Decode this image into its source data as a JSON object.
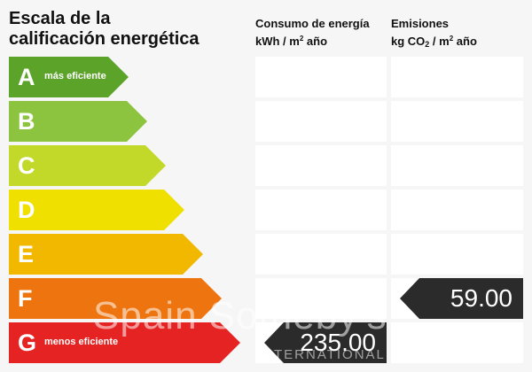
{
  "title": {
    "line1": "Escala de la",
    "line2": "calificación energética"
  },
  "consumo": {
    "line1": "Consumo de energía",
    "line2_pre": "kWh / m",
    "line2_sup": "2",
    "line2_post": " año",
    "value": "235.00",
    "rating": "G"
  },
  "emisiones": {
    "line1": "Emisiones",
    "line2_pre": "kg CO",
    "line2_sub": "2",
    "line2_mid": " / m",
    "line2_sup": "2",
    "line2_post": " año",
    "value": "59.00",
    "rating": "F"
  },
  "scale": [
    {
      "letter": "A",
      "desc": "más eficiente",
      "color": "#5ca32a"
    },
    {
      "letter": "B",
      "desc": "",
      "color": "#8cc43f"
    },
    {
      "letter": "C",
      "desc": "",
      "color": "#c2d92a"
    },
    {
      "letter": "D",
      "desc": "",
      "color": "#f0e000"
    },
    {
      "letter": "E",
      "desc": "",
      "color": "#f2b800"
    },
    {
      "letter": "F",
      "desc": "",
      "color": "#ee7410"
    },
    {
      "letter": "G",
      "desc": "menos eficiente",
      "color": "#e52323"
    }
  ],
  "watermark": {
    "brand": "Spain Sotheby's",
    "sub": "INTERNATIONAL REALTY"
  }
}
